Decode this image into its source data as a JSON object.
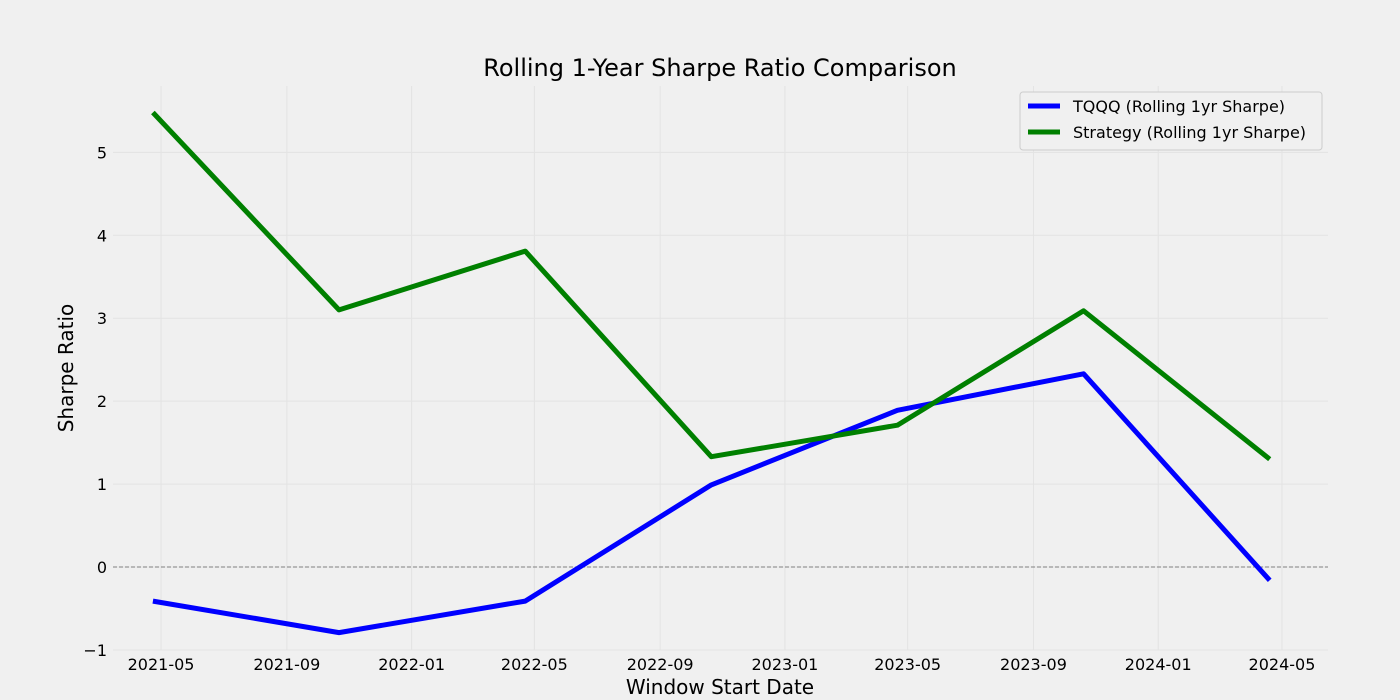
{
  "chart_data": {
    "type": "line",
    "title": "Rolling 1-Year Sharpe Ratio Comparison",
    "xlabel": "Window Start Date",
    "ylabel": "Sharpe Ratio",
    "xlim": [
      "2021-03-15",
      "2024-06-15"
    ],
    "ylim": [
      -1.0,
      5.8
    ],
    "x_ticks": [
      "2021-05",
      "2021-09",
      "2022-01",
      "2022-05",
      "2022-09",
      "2023-01",
      "2023-05",
      "2023-09",
      "2024-01",
      "2024-05"
    ],
    "y_ticks": [
      -1,
      0,
      1,
      2,
      3,
      4,
      5
    ],
    "grid": true,
    "reference_line_y": 0,
    "legend_position": "top-right",
    "x": [
      "2021-04-23",
      "2021-10-22",
      "2022-04-22",
      "2022-10-21",
      "2023-04-21",
      "2023-10-20",
      "2024-04-19"
    ],
    "series": [
      {
        "name": "TQQQ (Rolling 1yr Sharpe)",
        "color": "#0000ff",
        "values": [
          -0.41,
          -0.79,
          -0.41,
          0.99,
          1.89,
          2.33,
          -0.16
        ]
      },
      {
        "name": "Strategy (Rolling 1yr Sharpe)",
        "color": "#008000",
        "values": [
          5.48,
          3.1,
          3.81,
          1.33,
          1.71,
          3.09,
          1.3
        ]
      }
    ]
  }
}
